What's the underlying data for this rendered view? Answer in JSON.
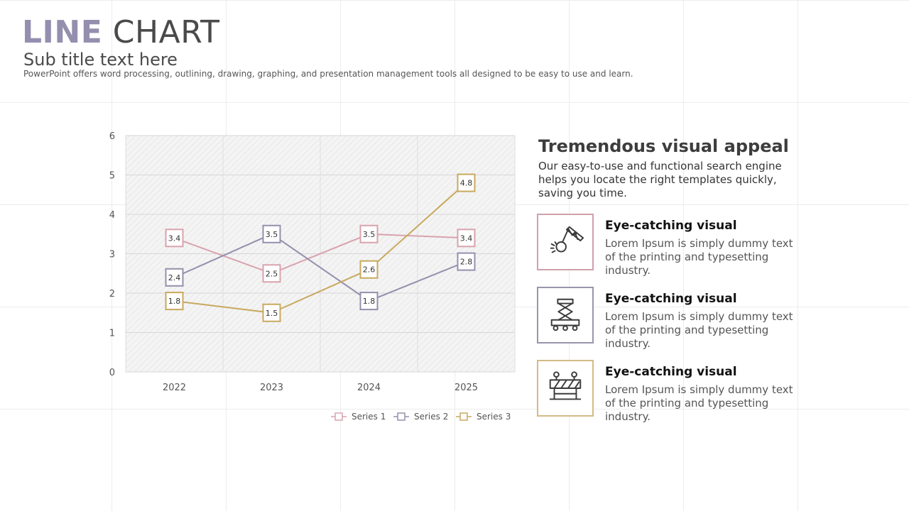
{
  "header": {
    "title_part1": "LINE",
    "title_part2": "CHART",
    "subtitle": "Sub title text here",
    "description": "PowerPoint offers word processing, outlining, drawing, graphing, and presentation management tools all designed to be easy to use and learn."
  },
  "side": {
    "heading": "Tremendous visual appeal",
    "text": "Our easy-to-use and functional search engine helps you locate the right templates quickly, saving you time.",
    "features": [
      {
        "title": "Eye-catching visual",
        "text": "Lorem Ipsum is simply dummy text of the printing and typesetting industry.",
        "icon": "wrecking-ball-crane-icon",
        "color": "#cfa0ab"
      },
      {
        "title": "Eye-catching visual",
        "text": "Lorem Ipsum is simply dummy text of the printing and typesetting industry.",
        "icon": "scissor-lift-icon",
        "color": "#9895ab"
      },
      {
        "title": "Eye-catching visual",
        "text": "Lorem Ipsum is simply dummy text of the printing and typesetting industry.",
        "icon": "road-barrier-icon",
        "color": "#d3bb84"
      }
    ]
  },
  "chart_data": {
    "type": "line",
    "categories": [
      "2022",
      "2023",
      "2024",
      "2025"
    ],
    "series": [
      {
        "name": "Series 1",
        "values": [
          3.4,
          2.5,
          3.5,
          3.4
        ],
        "color": "#d8a3ae"
      },
      {
        "name": "Series 2",
        "values": [
          2.4,
          3.5,
          1.8,
          2.8
        ],
        "color": "#9490ad"
      },
      {
        "name": "Series 3",
        "values": [
          1.8,
          1.5,
          2.6,
          4.8
        ],
        "color": "#c8a95f"
      }
    ],
    "ylim": [
      0,
      6
    ],
    "yticks": [
      0,
      1,
      2,
      3,
      4,
      5,
      6
    ],
    "grid": true,
    "legend": "bottom",
    "data_labels": true
  }
}
